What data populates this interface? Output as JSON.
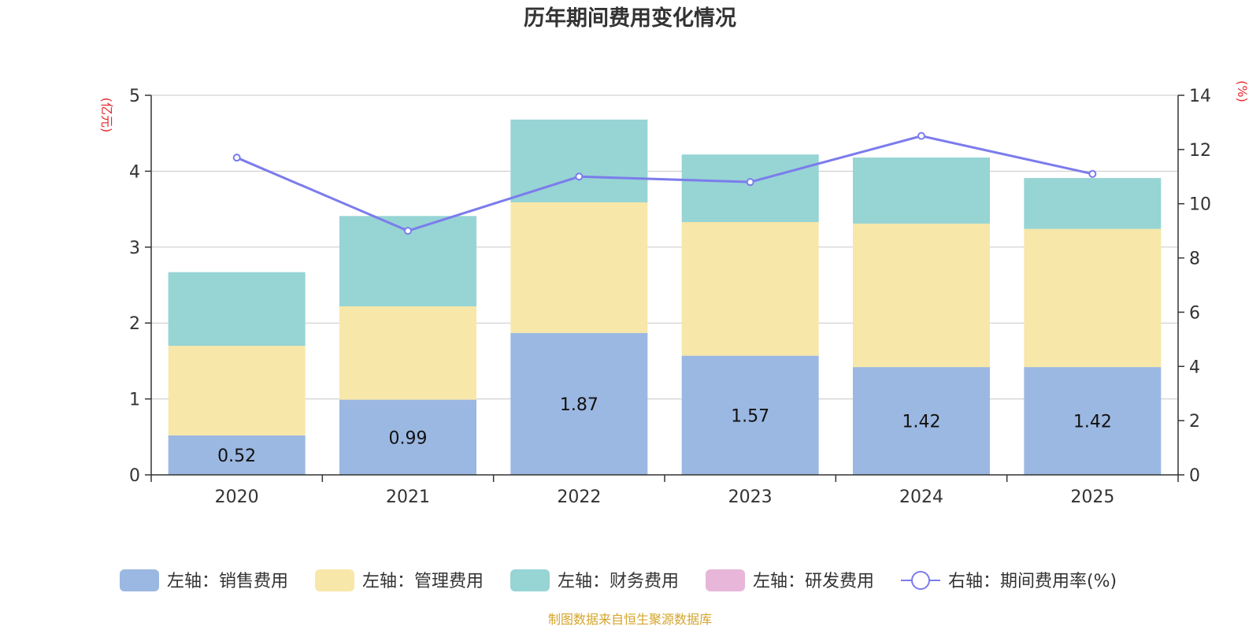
{
  "colors": {
    "sales": "#9bb8e2",
    "admin": "#f7e7a9",
    "finance": "#97d4d4",
    "rnd": "#e7b6d9",
    "rate": "#7b7cec",
    "unit_red": "#e8272b",
    "source": "#d4a52c",
    "grid": "#c8c8c8",
    "axis": "#333333"
  },
  "chart_data": {
    "type": "bar",
    "stacked": true,
    "title": "历年期间费用变化情况",
    "categories": [
      "2020",
      "2021",
      "2022",
      "2023",
      "2024",
      "2025"
    ],
    "y_left": {
      "unit": "(亿元)",
      "ylim": [
        0,
        5
      ],
      "ticks": [
        0,
        1,
        2,
        3,
        4,
        5
      ]
    },
    "y_right": {
      "unit": "(%)",
      "ylim": [
        0,
        14
      ],
      "ticks": [
        0,
        2,
        4,
        6,
        8,
        10,
        12,
        14
      ]
    },
    "series": [
      {
        "name": "左轴：销售费用",
        "axis": "left",
        "values": [
          0.52,
          0.99,
          1.87,
          1.57,
          1.42,
          1.42
        ],
        "labels": [
          "0.52",
          "0.99",
          "1.87",
          "1.57",
          "1.42",
          "1.42"
        ]
      },
      {
        "name": "左轴：管理费用",
        "axis": "left",
        "values": [
          1.18,
          1.23,
          1.72,
          1.76,
          1.89,
          1.82
        ]
      },
      {
        "name": "左轴：财务费用",
        "axis": "left",
        "values": [
          0.97,
          1.19,
          1.09,
          0.89,
          0.87,
          0.67
        ]
      },
      {
        "name": "左轴：研发费用",
        "axis": "left",
        "values": [
          0,
          0,
          0,
          0,
          0,
          0
        ]
      },
      {
        "name": "右轴：期间费用率(%)",
        "axis": "right",
        "type": "line",
        "values": [
          11.7,
          9.0,
          11.0,
          10.8,
          12.5,
          11.1
        ]
      }
    ],
    "legend_position": "bottom",
    "grid": true
  },
  "source": "制图数据来自恒生聚源数据库"
}
